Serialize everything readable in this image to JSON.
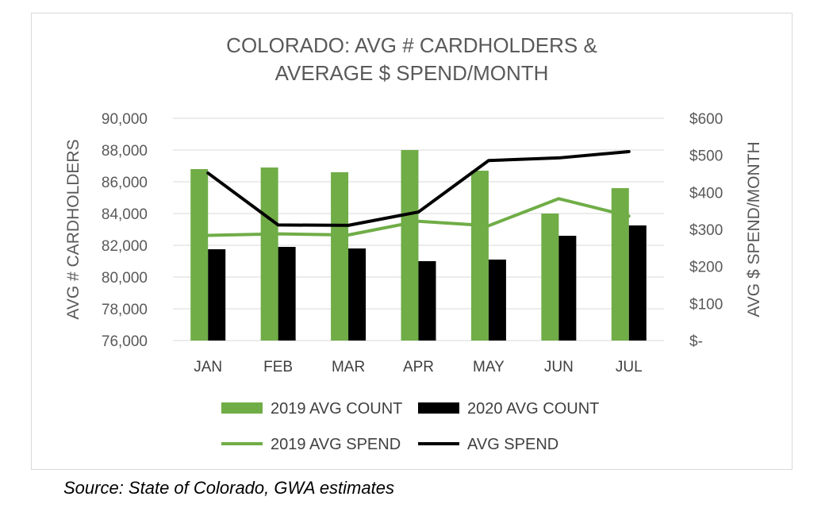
{
  "chart_data": {
    "type": "bar",
    "title_lines": [
      "COLORADO: AVG  # CARDHOLDERS &",
      "AVERAGE $ SPEND/MONTH"
    ],
    "categories": [
      "JAN",
      "FEB",
      "MAR",
      "APR",
      "MAY",
      "JUN",
      "JUL"
    ],
    "ylabel": "AVG # CARDHOLDERS",
    "y2label": "AVG $ SPEND/MONTH",
    "ylim": [
      76000,
      90000
    ],
    "y2lim": [
      0,
      600
    ],
    "yticks": [
      "76,000",
      "78,000",
      "80,000",
      "82,000",
      "84,000",
      "86,000",
      "88,000",
      "90,000"
    ],
    "y2ticks": [
      "$-",
      "$100",
      "$200",
      "$300",
      "$400",
      "$500",
      "$600"
    ],
    "grid": true,
    "legend_position": "bottom",
    "series": [
      {
        "name": "2019 AVG COUNT",
        "kind": "bar",
        "axis": "left",
        "color": "#70ad47",
        "values": [
          86800,
          86900,
          86600,
          88000,
          86700,
          84000,
          85600
        ]
      },
      {
        "name": "2020 AVG COUNT",
        "kind": "bar",
        "axis": "left",
        "color": "#000000",
        "values": [
          81750,
          81900,
          81800,
          81000,
          81100,
          82600,
          83250
        ]
      },
      {
        "name": "2019 AVG SPEND",
        "kind": "line",
        "axis": "right",
        "color": "#70ad47",
        "values": [
          284,
          288,
          285,
          322,
          310,
          383,
          336
        ]
      },
      {
        "name": "AVG SPEND",
        "kind": "line",
        "axis": "right",
        "color": "#000000",
        "values": [
          452,
          312,
          311,
          347,
          486,
          493,
          510
        ]
      }
    ]
  },
  "source_note": "Source: State of Colorado, GWA estimates"
}
